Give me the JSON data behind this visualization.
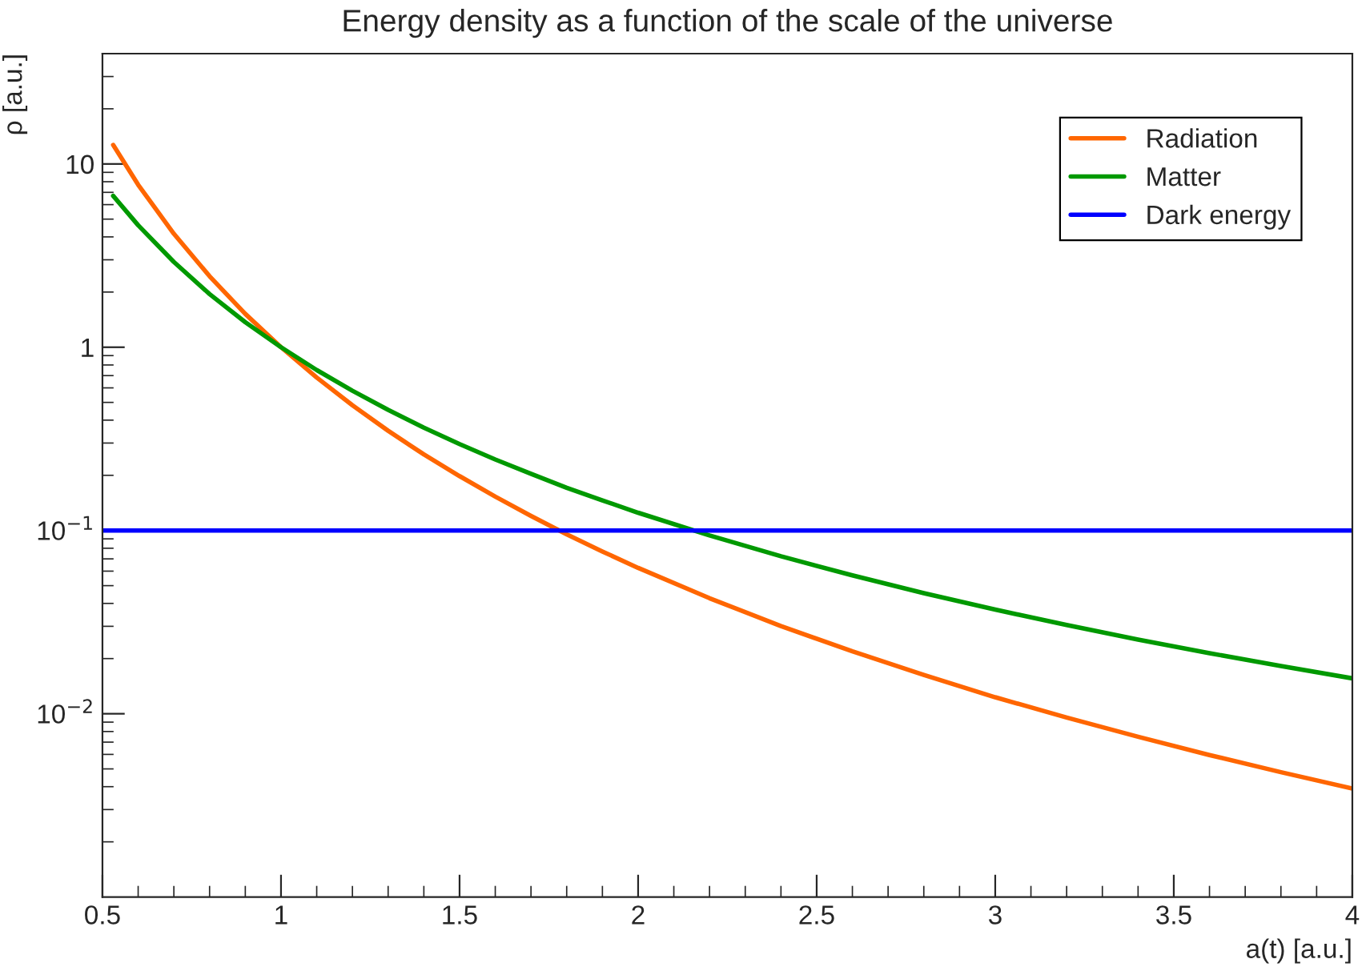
{
  "chart_data": {
    "type": "line",
    "title": "Energy density as a function of the scale of the universe",
    "xlabel": "a(t) [a.u.]",
    "ylabel": "ρ [a.u.]",
    "log": "y",
    "xlim": [
      0.5,
      4
    ],
    "xticks": [
      0.5,
      1,
      1.5,
      2,
      2.5,
      3,
      3.5,
      4
    ],
    "ylim": [
      0.001,
      40
    ],
    "yticks": [
      {
        "value": 10,
        "label": "10"
      },
      {
        "value": 1,
        "label": "1"
      },
      {
        "value": 0.1,
        "label": "10$^{−1}$"
      },
      {
        "value": 0.01,
        "label": "10$^{−2}$"
      }
    ],
    "grid": false,
    "legend": "top right",
    "marker": "none",
    "line_style": "solid",
    "series": [
      {
        "name": "Radiation",
        "color": "#ff6600",
        "x": [
          0.53,
          0.6,
          0.7,
          0.8,
          0.9,
          1.0,
          1.1,
          1.2,
          1.3,
          1.4,
          1.5,
          1.6,
          1.7,
          1.8,
          1.9,
          2.0,
          2.2,
          2.4,
          2.6,
          2.8,
          3.0,
          3.2,
          3.4,
          3.6,
          3.8,
          4.0
        ],
        "values": [
          12.7,
          7.7,
          4.16,
          2.44,
          1.52,
          1.0,
          0.683,
          0.482,
          0.35,
          0.26,
          0.198,
          0.153,
          0.12,
          0.0953,
          0.0768,
          0.0625,
          0.0427,
          0.0301,
          0.0219,
          0.0163,
          0.0123,
          0.00954,
          0.00749,
          0.00595,
          0.0048,
          0.00391
        ]
      },
      {
        "name": "Matter",
        "color": "#009900",
        "x": [
          0.53,
          0.6,
          0.7,
          0.8,
          0.9,
          1.0,
          1.1,
          1.2,
          1.3,
          1.4,
          1.5,
          1.6,
          1.7,
          1.8,
          1.9,
          2.0,
          2.2,
          2.4,
          2.6,
          2.8,
          3.0,
          3.2,
          3.4,
          3.6,
          3.8,
          4.0
        ],
        "values": [
          6.7,
          4.63,
          2.92,
          1.95,
          1.37,
          1.0,
          0.751,
          0.579,
          0.455,
          0.364,
          0.296,
          0.244,
          0.204,
          0.171,
          0.146,
          0.125,
          0.0939,
          0.0723,
          0.0569,
          0.0455,
          0.037,
          0.0305,
          0.0254,
          0.0214,
          0.0182,
          0.0156
        ]
      },
      {
        "name": "Dark energy",
        "color": "#0000ff",
        "x": [
          0.5,
          4.0
        ],
        "values": [
          0.1,
          0.1
        ]
      }
    ]
  }
}
